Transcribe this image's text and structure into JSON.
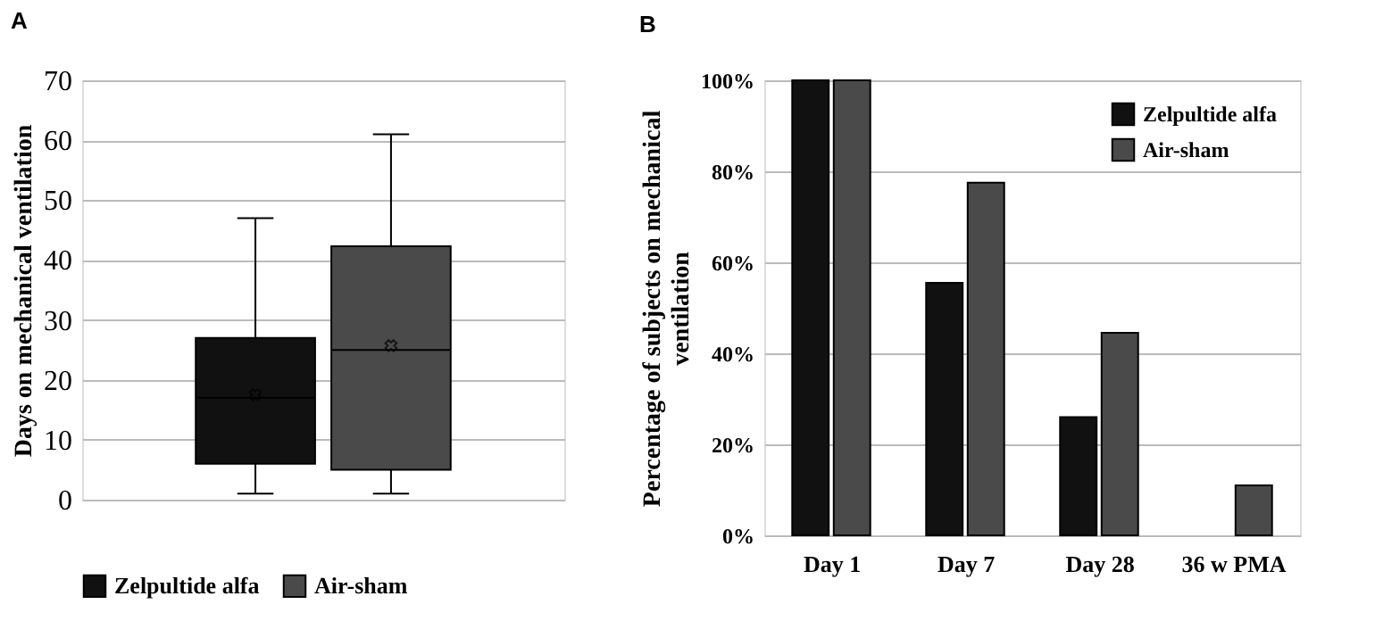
{
  "chart_data": [
    {
      "type": "box",
      "title": "A",
      "ylabel": "Days on mechanical ventilation",
      "categories": [
        null
      ],
      "ylim": [
        0,
        70
      ],
      "yticks": [
        0,
        10,
        20,
        30,
        40,
        50,
        60,
        70
      ],
      "grid": "y",
      "legend": "bottom",
      "marker": "cross",
      "series": [
        {
          "name": "Zelpultide alfa",
          "color": "#111111",
          "boxes": [
            {
              "low": 1,
              "q1": 6,
              "median": 17,
              "q3": 27,
              "high": 47,
              "mean": 17.5
            }
          ]
        },
        {
          "name": "Air-sham",
          "color": "#4a4a4a",
          "boxes": [
            {
              "low": 1,
              "q1": 5,
              "median": 25,
              "q3": 42.3,
              "high": 61,
              "mean": 25.7
            }
          ]
        }
      ]
    },
    {
      "type": "bar",
      "title": "B",
      "ylabel": "Percentage of subjects on mechanical ventilation",
      "categories": [
        "Day 1",
        "Day 7",
        "Day 28",
        "36 w PMA"
      ],
      "ylim": [
        0,
        100
      ],
      "yticks": [
        {
          "value": 0,
          "label": "0%"
        },
        {
          "value": 20,
          "label": "20%"
        },
        {
          "value": 40,
          "label": "40%"
        },
        {
          "value": 60,
          "label": "60%"
        },
        {
          "value": 80,
          "label": "80%"
        },
        {
          "value": 100,
          "label": "100%"
        }
      ],
      "grid": "y",
      "legend": "top right",
      "series": [
        {
          "name": "Zelpultide alfa",
          "color": "#111111",
          "values": [
            100,
            55.5,
            26,
            0
          ]
        },
        {
          "name": "Air-sham",
          "color": "#4a4a4a",
          "values": [
            100,
            77.5,
            44.5,
            11
          ]
        }
      ]
    }
  ]
}
